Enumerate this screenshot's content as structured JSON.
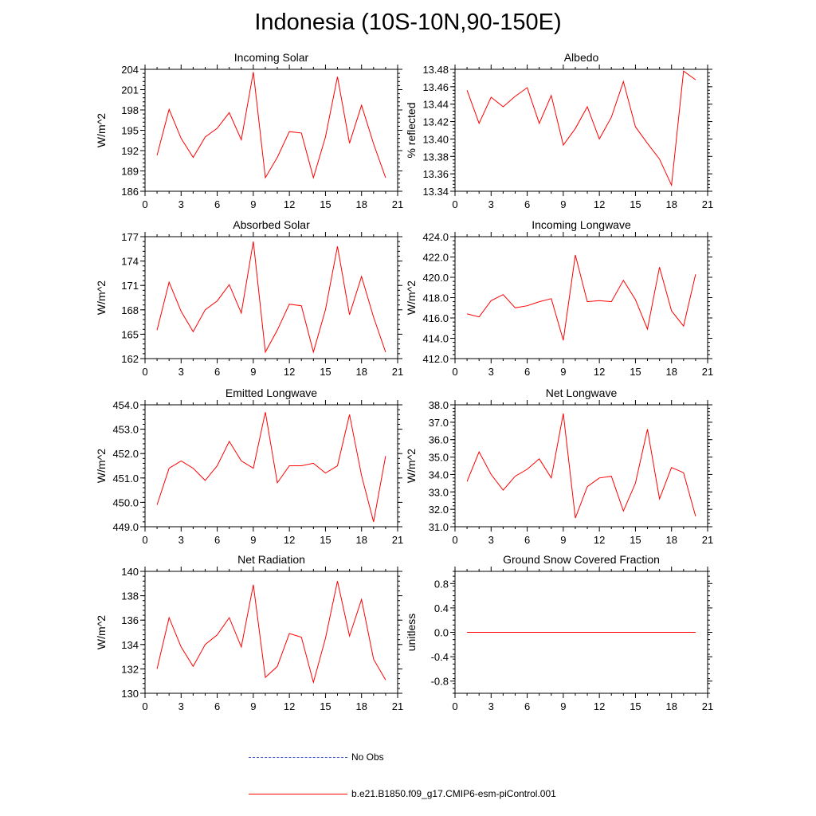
{
  "title": "Indonesia (10S-10N,90-150E)",
  "colors": {
    "model": "#ff0000",
    "obs": "#3355cc",
    "axis": "#000000"
  },
  "legend": {
    "obs_label": "No Obs",
    "model_label": "b.e21.B1850.f09_g17.CMIP6-esm-piControl.001"
  },
  "chart_data": [
    {
      "type": "line",
      "title": "Incoming Solar",
      "ylabel": "W/m^2",
      "xlim": [
        0,
        21
      ],
      "ylim": [
        186,
        204
      ],
      "xticks": [
        0,
        3,
        6,
        9,
        12,
        15,
        18,
        21
      ],
      "yticks": [
        186,
        189,
        192,
        195,
        198,
        201,
        204
      ],
      "ytick_labels": [
        "186",
        "189",
        "192",
        "195",
        "198",
        "201",
        "204"
      ],
      "x": [
        1,
        2,
        3,
        4,
        5,
        6,
        7,
        8,
        9,
        10,
        11,
        12,
        13,
        14,
        15,
        16,
        17,
        18,
        19,
        20
      ],
      "values": [
        191.3,
        198.1,
        193.8,
        191.0,
        194.0,
        195.3,
        197.6,
        193.6,
        203.6,
        188.0,
        191.0,
        194.8,
        194.6,
        188.0,
        194.0,
        202.9,
        193.1,
        198.7,
        193.0,
        188.0
      ]
    },
    {
      "type": "line",
      "title": "Albedo",
      "ylabel": "% reflected",
      "xlim": [
        0,
        21
      ],
      "ylim": [
        13.34,
        13.48
      ],
      "xticks": [
        0,
        3,
        6,
        9,
        12,
        15,
        18,
        21
      ],
      "yticks": [
        13.34,
        13.36,
        13.38,
        13.4,
        13.42,
        13.44,
        13.46,
        13.48
      ],
      "ytick_labels": [
        "13.34",
        "13.36",
        "13.38",
        "13.40",
        "13.42",
        "13.44",
        "13.46",
        "13.48"
      ],
      "x": [
        1,
        2,
        3,
        4,
        5,
        6,
        7,
        8,
        9,
        10,
        11,
        12,
        13,
        14,
        15,
        16,
        17,
        18,
        19,
        20
      ],
      "values": [
        13.456,
        13.418,
        13.448,
        13.437,
        13.449,
        13.459,
        13.418,
        13.45,
        13.393,
        13.412,
        13.437,
        13.4,
        13.425,
        13.466,
        13.414,
        13.395,
        13.377,
        13.347,
        13.478,
        13.468
      ]
    },
    {
      "type": "line",
      "title": "Absorbed Solar",
      "ylabel": "W/m^2",
      "xlim": [
        0,
        21
      ],
      "ylim": [
        162,
        177
      ],
      "xticks": [
        0,
        3,
        6,
        9,
        12,
        15,
        18,
        21
      ],
      "yticks": [
        162,
        165,
        168,
        171,
        174,
        177
      ],
      "ytick_labels": [
        "162",
        "165",
        "168",
        "171",
        "174",
        "177"
      ],
      "x": [
        1,
        2,
        3,
        4,
        5,
        6,
        7,
        8,
        9,
        10,
        11,
        12,
        13,
        14,
        15,
        16,
        17,
        18,
        19,
        20
      ],
      "values": [
        165.5,
        171.4,
        167.8,
        165.3,
        168.0,
        169.1,
        171.1,
        167.6,
        176.4,
        162.8,
        165.5,
        168.7,
        168.5,
        162.8,
        168.0,
        175.8,
        167.4,
        172.1,
        167.1,
        162.8
      ]
    },
    {
      "type": "line",
      "title": "Incoming Longwave",
      "ylabel": "W/m^2",
      "xlim": [
        0,
        21
      ],
      "ylim": [
        412.0,
        424.0
      ],
      "xticks": [
        0,
        3,
        6,
        9,
        12,
        15,
        18,
        21
      ],
      "yticks": [
        412,
        414,
        416,
        418,
        420,
        422,
        424
      ],
      "ytick_labels": [
        "412.0",
        "414.0",
        "416.0",
        "418.0",
        "420.0",
        "422.0",
        "424.0"
      ],
      "x": [
        1,
        2,
        3,
        4,
        5,
        6,
        7,
        8,
        9,
        10,
        11,
        12,
        13,
        14,
        15,
        16,
        17,
        18,
        19,
        20
      ],
      "values": [
        416.4,
        416.1,
        417.7,
        418.3,
        417.0,
        417.2,
        417.6,
        417.9,
        413.8,
        422.2,
        417.6,
        417.7,
        417.6,
        419.7,
        417.8,
        414.9,
        421.0,
        416.7,
        415.2,
        420.3
      ]
    },
    {
      "type": "line",
      "title": "Emitted Longwave",
      "ylabel": "W/m^2",
      "xlim": [
        0,
        21
      ],
      "ylim": [
        449.0,
        454.0
      ],
      "xticks": [
        0,
        3,
        6,
        9,
        12,
        15,
        18,
        21
      ],
      "yticks": [
        449,
        450,
        451,
        452,
        453,
        454
      ],
      "ytick_labels": [
        "449.0",
        "450.0",
        "451.0",
        "452.0",
        "453.0",
        "454.0"
      ],
      "x": [
        1,
        2,
        3,
        4,
        5,
        6,
        7,
        8,
        9,
        10,
        11,
        12,
        13,
        14,
        15,
        16,
        17,
        18,
        19,
        20
      ],
      "values": [
        449.9,
        451.4,
        451.7,
        451.4,
        450.9,
        451.5,
        452.5,
        451.7,
        451.4,
        453.7,
        450.8,
        451.5,
        451.5,
        451.6,
        451.2,
        451.5,
        453.6,
        451.1,
        449.2,
        451.9
      ]
    },
    {
      "type": "line",
      "title": "Net Longwave",
      "ylabel": "W/m^2",
      "xlim": [
        0,
        21
      ],
      "ylim": [
        31.0,
        38.0
      ],
      "xticks": [
        0,
        3,
        6,
        9,
        12,
        15,
        18,
        21
      ],
      "yticks": [
        31,
        32,
        33,
        34,
        35,
        36,
        37,
        38
      ],
      "ytick_labels": [
        "31.0",
        "32.0",
        "33.0",
        "34.0",
        "35.0",
        "36.0",
        "37.0",
        "38.0"
      ],
      "x": [
        1,
        2,
        3,
        4,
        5,
        6,
        7,
        8,
        9,
        10,
        11,
        12,
        13,
        14,
        15,
        16,
        17,
        18,
        19,
        20
      ],
      "values": [
        33.6,
        35.3,
        34.0,
        33.1,
        33.9,
        34.3,
        34.9,
        33.8,
        37.5,
        31.5,
        33.3,
        33.8,
        33.9,
        31.9,
        33.5,
        36.6,
        32.6,
        34.4,
        34.1,
        31.6
      ]
    },
    {
      "type": "line",
      "title": "Net Radiation",
      "ylabel": "W/m^2",
      "xlim": [
        0,
        21
      ],
      "ylim": [
        130,
        140
      ],
      "xticks": [
        0,
        3,
        6,
        9,
        12,
        15,
        18,
        21
      ],
      "yticks": [
        130,
        132,
        134,
        136,
        138,
        140
      ],
      "ytick_labels": [
        "130",
        "132",
        "134",
        "136",
        "138",
        "140"
      ],
      "x": [
        1,
        2,
        3,
        4,
        5,
        6,
        7,
        8,
        9,
        10,
        11,
        12,
        13,
        14,
        15,
        16,
        17,
        18,
        19,
        20
      ],
      "values": [
        132.0,
        136.2,
        133.8,
        132.2,
        134.0,
        134.8,
        136.2,
        133.8,
        138.9,
        131.3,
        132.2,
        134.9,
        134.6,
        130.9,
        134.5,
        139.2,
        134.7,
        137.7,
        132.8,
        131.1
      ]
    },
    {
      "type": "line",
      "title": "Ground Snow Covered Fraction",
      "ylabel": "unitless",
      "xlim": [
        0,
        21
      ],
      "ylim": [
        -1.0,
        1.0
      ],
      "xticks": [
        0,
        3,
        6,
        9,
        12,
        15,
        18,
        21
      ],
      "yticks": [
        -0.8,
        -0.4,
        0.0,
        0.4,
        0.8
      ],
      "ytick_labels": [
        "-0.8",
        "-0.4",
        "0.0",
        "0.4",
        "0.8"
      ],
      "x": [
        1,
        2,
        3,
        4,
        5,
        6,
        7,
        8,
        9,
        10,
        11,
        12,
        13,
        14,
        15,
        16,
        17,
        18,
        19,
        20
      ],
      "values": [
        0,
        0,
        0,
        0,
        0,
        0,
        0,
        0,
        0,
        0,
        0,
        0,
        0,
        0,
        0,
        0,
        0,
        0,
        0,
        0
      ]
    }
  ]
}
